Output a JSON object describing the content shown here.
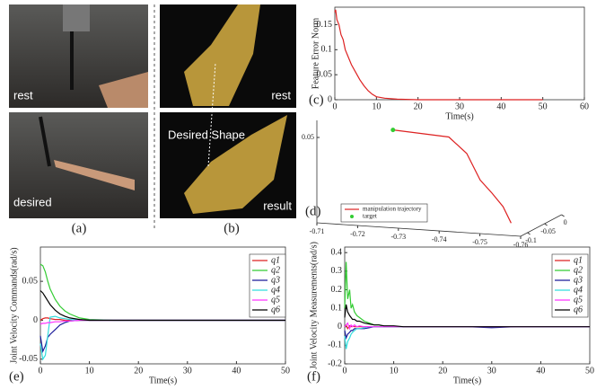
{
  "photos": {
    "a": {
      "label": "(a)",
      "top": "rest",
      "bottom": "desired"
    },
    "b": {
      "label": "(b)",
      "top": "rest",
      "annotation": "Desired Shape",
      "bottom": "result"
    }
  },
  "chart_data": [
    {
      "type": "line",
      "label": "(c)",
      "xlabel": "Time(s)",
      "ylabel": "Feature Error Norm",
      "x": [
        0,
        0.2,
        0.5,
        1,
        1.5,
        2,
        2.5,
        3,
        4,
        5,
        6,
        7,
        8,
        9,
        10,
        12,
        15,
        20,
        30,
        40,
        50
      ],
      "values": [
        0.175,
        0.18,
        0.16,
        0.15,
        0.13,
        0.12,
        0.1,
        0.09,
        0.07,
        0.055,
        0.04,
        0.028,
        0.018,
        0.011,
        0.006,
        0.003,
        0.001,
        0,
        0,
        0,
        0
      ],
      "color": "#dd2222",
      "xlim": [
        0,
        60
      ],
      "xticks": [
        0,
        10,
        20,
        30,
        40,
        50,
        60
      ],
      "ylim": [
        0,
        0.185
      ],
      "yticks": [
        0,
        0.05,
        0.1,
        0.15
      ]
    },
    {
      "type": "line3d",
      "label": "(d)",
      "x": [
        -0.727,
        -0.7407,
        -0.7451,
        -0.7484,
        -0.7513,
        -0.754,
        -0.756
      ],
      "y": [
        -0.1,
        -0.1,
        -0.1,
        -0.1,
        -0.1,
        -0.1,
        -0.1
      ],
      "z": [
        0.055,
        0.053,
        0.044,
        0.029,
        0.0218,
        0.0143,
        0.005
      ],
      "series_name": "manipulation trajectory",
      "color": "#dd2222",
      "target": {
        "name": "target",
        "x": -0.727,
        "y": -0.1,
        "z": 0.055,
        "color": "#33cc33"
      },
      "xlim": [
        -0.71,
        -0.76
      ],
      "xticks": [
        -0.71,
        -0.72,
        -0.73,
        -0.74,
        -0.75,
        -0.76
      ],
      "ylim": [
        -0.12,
        0
      ],
      "yticks": [
        -0.1,
        -0.05,
        0
      ],
      "zlim": [
        0,
        0.06
      ],
      "zticks": [
        0.05
      ]
    },
    {
      "type": "multiline",
      "label": "(e)",
      "xlabel": "Time(s)",
      "ylabel": "Joint Velocity Commands(rad/s)",
      "x": [
        0,
        0.5,
        1,
        1.5,
        2,
        3,
        4,
        5,
        6,
        8,
        10,
        15,
        20,
        30,
        40,
        50
      ],
      "series": [
        {
          "name": "q1",
          "color": "#dd2222",
          "values": [
            0,
            0.002,
            0.003,
            0.003,
            0.002,
            0.001,
            0.001,
            0,
            0,
            0,
            0,
            0,
            0,
            0,
            0,
            0
          ]
        },
        {
          "name": "q2",
          "color": "#33cc33",
          "values": [
            0.072,
            0.07,
            0.062,
            0.05,
            0.04,
            0.027,
            0.018,
            0.012,
            0.008,
            0.003,
            0.001,
            0,
            0,
            0,
            0,
            0
          ]
        },
        {
          "name": "q3",
          "color": "#1a1a99",
          "values": [
            -0.02,
            -0.04,
            -0.033,
            -0.022,
            -0.018,
            -0.012,
            -0.006,
            -0.003,
            -0.001,
            0,
            0,
            0,
            0,
            0,
            0,
            0
          ]
        },
        {
          "name": "q4",
          "color": "#33dddd",
          "values": [
            -0.03,
            -0.05,
            -0.045,
            -0.02,
            0.004,
            0.005,
            0.003,
            0.002,
            0.001,
            0,
            0,
            0,
            0,
            0,
            0,
            0
          ]
        },
        {
          "name": "q5",
          "color": "#ff33ff",
          "values": [
            -0.005,
            -0.004,
            -0.004,
            -0.003,
            -0.003,
            -0.002,
            -0.002,
            -0.001,
            -0.001,
            0,
            0,
            0,
            0,
            0,
            0,
            0
          ]
        },
        {
          "name": "q6",
          "color": "#000000",
          "values": [
            0.038,
            0.035,
            0.03,
            0.025,
            0.02,
            0.013,
            0.008,
            0.005,
            0.003,
            0.001,
            0,
            0,
            0,
            0,
            0,
            0
          ]
        }
      ],
      "xlim": [
        0,
        50
      ],
      "xticks": [
        0,
        10,
        20,
        30,
        40,
        50
      ],
      "ylim": [
        -0.056,
        0.094
      ],
      "yticks": [
        -0.05,
        0,
        0.05
      ]
    },
    {
      "type": "multiline",
      "label": "(f)",
      "xlabel": "Time(s)",
      "ylabel": "Joint Velocity Measurements(rad/s)",
      "x": [
        0,
        0.3,
        0.6,
        1,
        1.3,
        1.6,
        2,
        2.5,
        3,
        4,
        5,
        6,
        7,
        8,
        10,
        12,
        15,
        20,
        25,
        30,
        35,
        40,
        45,
        50
      ],
      "series": [
        {
          "name": "q1",
          "color": "#dd2222",
          "values": [
            0,
            0.01,
            -0.01,
            0.005,
            0,
            0.003,
            0,
            0,
            0,
            0,
            0,
            0,
            0,
            0,
            0,
            0,
            0,
            0,
            0,
            0,
            0,
            0,
            0,
            0
          ]
        },
        {
          "name": "q2",
          "color": "#33cc33",
          "values": [
            0.1,
            0.35,
            0.15,
            0.2,
            0.1,
            0.12,
            0.08,
            0.06,
            0.05,
            0.03,
            0.02,
            0.01,
            0.01,
            0,
            0,
            0,
            0,
            0,
            0,
            0,
            0,
            0,
            0,
            0
          ]
        },
        {
          "name": "q3",
          "color": "#1a1a99",
          "values": [
            -0.02,
            -0.06,
            -0.04,
            -0.03,
            -0.02,
            -0.02,
            -0.01,
            -0.01,
            -0.01,
            -0.01,
            -0.005,
            0,
            0,
            0,
            0,
            0,
            0,
            0,
            0,
            -0.005,
            0,
            0,
            0,
            0
          ]
        },
        {
          "name": "q4",
          "color": "#33dddd",
          "values": [
            -0.05,
            -0.12,
            -0.08,
            -0.06,
            -0.04,
            -0.03,
            -0.02,
            -0.01,
            -0.01,
            -0.005,
            0,
            0,
            0,
            0,
            0,
            0,
            0,
            0,
            0,
            0,
            0,
            0,
            0,
            0
          ]
        },
        {
          "name": "q5",
          "color": "#ff33ff",
          "values": [
            0,
            0.01,
            0.02,
            -0.01,
            0.01,
            0,
            0.01,
            0,
            0.005,
            0,
            0,
            0,
            0,
            0,
            0,
            0,
            0,
            0,
            0,
            0,
            0,
            0,
            0,
            0
          ]
        },
        {
          "name": "q6",
          "color": "#000000",
          "values": [
            0.05,
            0.12,
            0.08,
            0.06,
            0.05,
            0.04,
            0.04,
            0.03,
            0.03,
            0.02,
            0.015,
            0.01,
            0.01,
            0.005,
            0.005,
            0,
            0,
            0,
            0,
            0,
            0,
            0,
            0,
            0
          ]
        }
      ],
      "xlim": [
        0,
        50
      ],
      "xticks": [
        0,
        10,
        20,
        30,
        40,
        50
      ],
      "ylim": [
        -0.2,
        0.43
      ],
      "yticks": [
        -0.2,
        -0.1,
        0,
        0.1,
        0.2,
        0.3,
        0.4
      ]
    }
  ]
}
